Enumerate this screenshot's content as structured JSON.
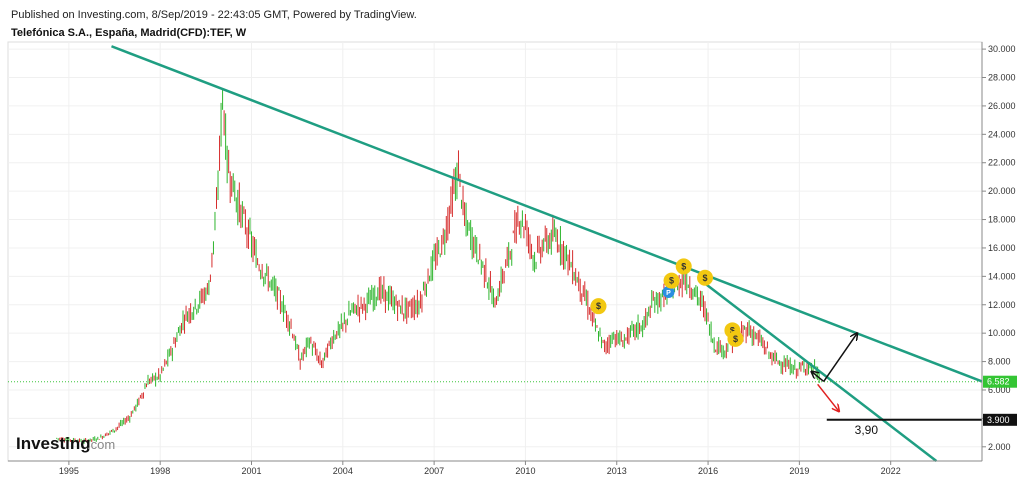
{
  "header": {
    "published": "Published on Investing.com, 8/Sep/2019 - 22:43:05 GMT, Powered by TradingView.",
    "symbol": "Telefónica S.A., España, Madrid(CFD):TEF, W"
  },
  "logo": {
    "brand": "Investing",
    "suffix": ".com"
  },
  "colors": {
    "price_up": "#2db52d",
    "price_down": "#d62d2d",
    "trendline": "#1f9e82",
    "current_line": "#3cc63c",
    "label_bg_current": "#34c534",
    "label_bg_target": "#111111",
    "arrow_up": "#111111",
    "arrow_down": "#e02020",
    "event_dividend": "#f2c811",
    "event_p": "#2a8fe0"
  },
  "chart_data": {
    "type": "line",
    "title": "Telefónica S.A., España, Madrid(CFD):TEF, W",
    "x_axis": {
      "ticks": [
        "1995",
        "1998",
        "2001",
        "2004",
        "2007",
        "2010",
        "2013",
        "2016",
        "2019",
        "2022"
      ]
    },
    "y_axis": {
      "range": [
        1,
        30.5
      ],
      "ticks": [
        "30.000",
        "28.000",
        "26.000",
        "24.000",
        "22.000",
        "20.000",
        "18.000",
        "16.000",
        "14.000",
        "12.000",
        "10.000",
        "8.000",
        "6.000",
        "4.000",
        "2.000"
      ],
      "tick_values": [
        30,
        28,
        26,
        24,
        22,
        20,
        18,
        16,
        14,
        12,
        10,
        8,
        6,
        4,
        2
      ]
    },
    "series": [
      {
        "x": [
          1994.6,
          1995.0,
          1995.5,
          1996.0,
          1996.5,
          1997.0,
          1997.3,
          1997.6,
          1998.0,
          1998.4,
          1998.8,
          1999.2,
          1999.6,
          1999.85,
          2000.05,
          2000.2,
          2000.5,
          2000.9,
          2001.2,
          2001.5,
          2001.9,
          2002.3,
          2002.6,
          2002.9,
          2003.3,
          2003.7,
          2004.0,
          2004.3,
          2004.8,
          2005.2,
          2005.6,
          2006.0,
          2006.5,
          2006.9,
          2007.3,
          2007.6,
          2007.8,
          2008.0,
          2008.3,
          2008.7,
          2009.0,
          2009.2,
          2009.5,
          2009.8,
          2010.0,
          2010.3,
          2010.6,
          2011.0,
          2011.3,
          2011.7,
          2012.0,
          2012.3,
          2012.6,
          2012.9,
          2013.2,
          2013.5,
          2013.9,
          2014.2,
          2014.6,
          2014.9,
          2015.2,
          2015.5,
          2015.9,
          2016.2,
          2016.6,
          2016.9,
          2017.3,
          2017.7,
          2018.1,
          2018.5,
          2018.9,
          2019.2,
          2019.5,
          2019.7
        ],
        "values": [
          2.6,
          2.5,
          2.4,
          2.6,
          3.2,
          4.1,
          5.2,
          6.6,
          7.0,
          8.9,
          11.1,
          12.0,
          13.2,
          18.5,
          26.8,
          22.0,
          19.5,
          17.0,
          15.0,
          14.0,
          12.5,
          10.5,
          8.0,
          9.5,
          7.8,
          9.8,
          10.5,
          11.6,
          12.1,
          13.0,
          12.3,
          11.6,
          12.0,
          14.5,
          16.5,
          19.5,
          21.5,
          18.0,
          16.4,
          14.2,
          12.0,
          13.6,
          15.8,
          18.2,
          17.5,
          15.2,
          16.3,
          16.8,
          15.7,
          13.8,
          12.3,
          10.4,
          9.0,
          9.8,
          9.4,
          10.1,
          10.6,
          12.2,
          12.6,
          13.1,
          14.0,
          13.1,
          11.7,
          9.2,
          8.8,
          9.7,
          10.3,
          9.5,
          8.3,
          7.8,
          7.4,
          7.7,
          7.5,
          6.58
        ]
      }
    ],
    "annotations": {
      "current_price": {
        "value": 6.582,
        "label": "6.582"
      },
      "target_level": {
        "value": 3.9,
        "label": "3.900",
        "text": "3,90"
      }
    },
    "trendlines": [
      {
        "x1": 1996.4,
        "y1": 30.2,
        "x2": 2025.0,
        "y2": 6.6
      },
      {
        "x1": 2015.9,
        "y1": 13.5,
        "x2": 2023.5,
        "y2": 1.0
      }
    ],
    "events": [
      {
        "x": 2012.4,
        "y": 11.9,
        "label": "$"
      },
      {
        "x": 2014.7,
        "y": 12.9,
        "label": "P"
      },
      {
        "x": 2014.8,
        "y": 13.7,
        "label": "$"
      },
      {
        "x": 2015.2,
        "y": 14.7,
        "label": "$"
      },
      {
        "x": 2015.9,
        "y": 13.9,
        "label": "$"
      },
      {
        "x": 2016.8,
        "y": 10.2,
        "label": "$"
      },
      {
        "x": 2016.9,
        "y": 9.6,
        "label": "$"
      }
    ],
    "arrows": [
      {
        "x1": 2019.8,
        "y1": 6.6,
        "x2": 2020.9,
        "y2": 10.0,
        "color": "arrow_up"
      },
      {
        "x1": 2019.8,
        "y1": 6.6,
        "x2": 2019.4,
        "y2": 7.3,
        "color": "arrow_up"
      },
      {
        "x1": 2019.6,
        "y1": 6.4,
        "x2": 2020.3,
        "y2": 4.5,
        "color": "arrow_down"
      }
    ],
    "grid": true,
    "legend": "none"
  }
}
